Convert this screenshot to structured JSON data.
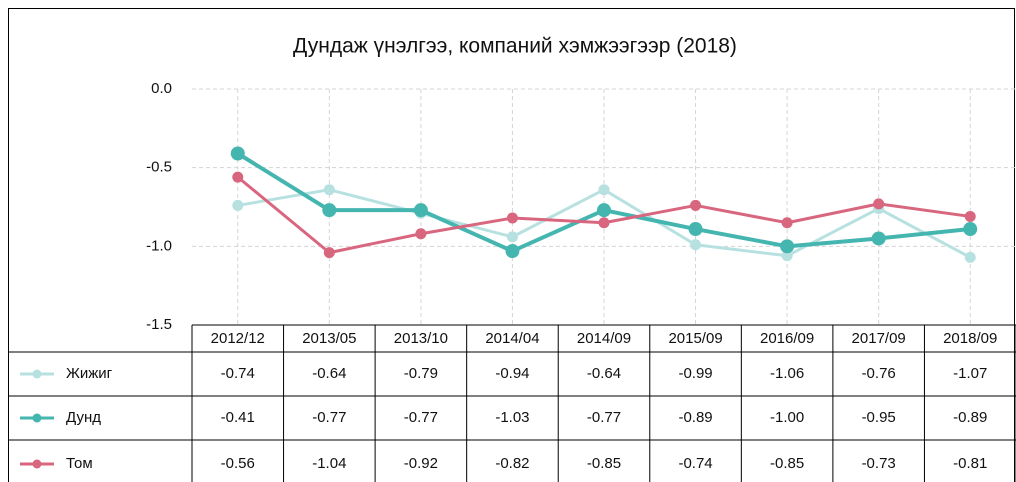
{
  "chart_data": {
    "type": "line",
    "title": "Дундаж үнэлгээ, компаний хэмжээгээр (2018)",
    "categories": [
      "2012/12",
      "2013/05",
      "2013/10",
      "2014/04",
      "2014/09",
      "2015/09",
      "2016/09",
      "2017/09",
      "2018/09"
    ],
    "series": [
      {
        "name": "Жижиг",
        "color": "#b7e1e0",
        "values": [
          -0.74,
          -0.64,
          -0.79,
          -0.94,
          -0.64,
          -0.99,
          -1.06,
          -0.76,
          -1.07
        ],
        "value_labels": [
          "-0.74",
          "-0.64",
          "-0.79",
          "-0.94",
          "-0.64",
          "-0.99",
          "-1.06",
          "-0.76",
          "-1.07"
        ]
      },
      {
        "name": "Дунд",
        "color": "#45b5b0",
        "values": [
          -0.41,
          -0.77,
          -0.77,
          -1.03,
          -0.77,
          -0.89,
          -1.0,
          -0.95,
          -0.89
        ],
        "value_labels": [
          "-0.41",
          "-0.77",
          "-0.77",
          "-1.03",
          "-0.77",
          "-0.89",
          "-1.00",
          "-0.95",
          "-0.89"
        ]
      },
      {
        "name": "Том",
        "color": "#d9667f",
        "values": [
          -0.56,
          -1.04,
          -0.92,
          -0.82,
          -0.85,
          -0.74,
          -0.85,
          -0.73,
          -0.81
        ],
        "value_labels": [
          "-0.56",
          "-1.04",
          "-0.92",
          "-0.82",
          "-0.85",
          "-0.74",
          "-0.85",
          "-0.73",
          "-0.81"
        ]
      }
    ],
    "ylim": [
      -1.5,
      0
    ],
    "yticks": [
      {
        "value": 0,
        "label": "0.0"
      },
      {
        "value": -0.5,
        "label": "-0.5"
      },
      {
        "value": -1,
        "label": "-1.0"
      },
      {
        "value": -1.5,
        "label": "-1.5"
      }
    ],
    "grid": true
  }
}
